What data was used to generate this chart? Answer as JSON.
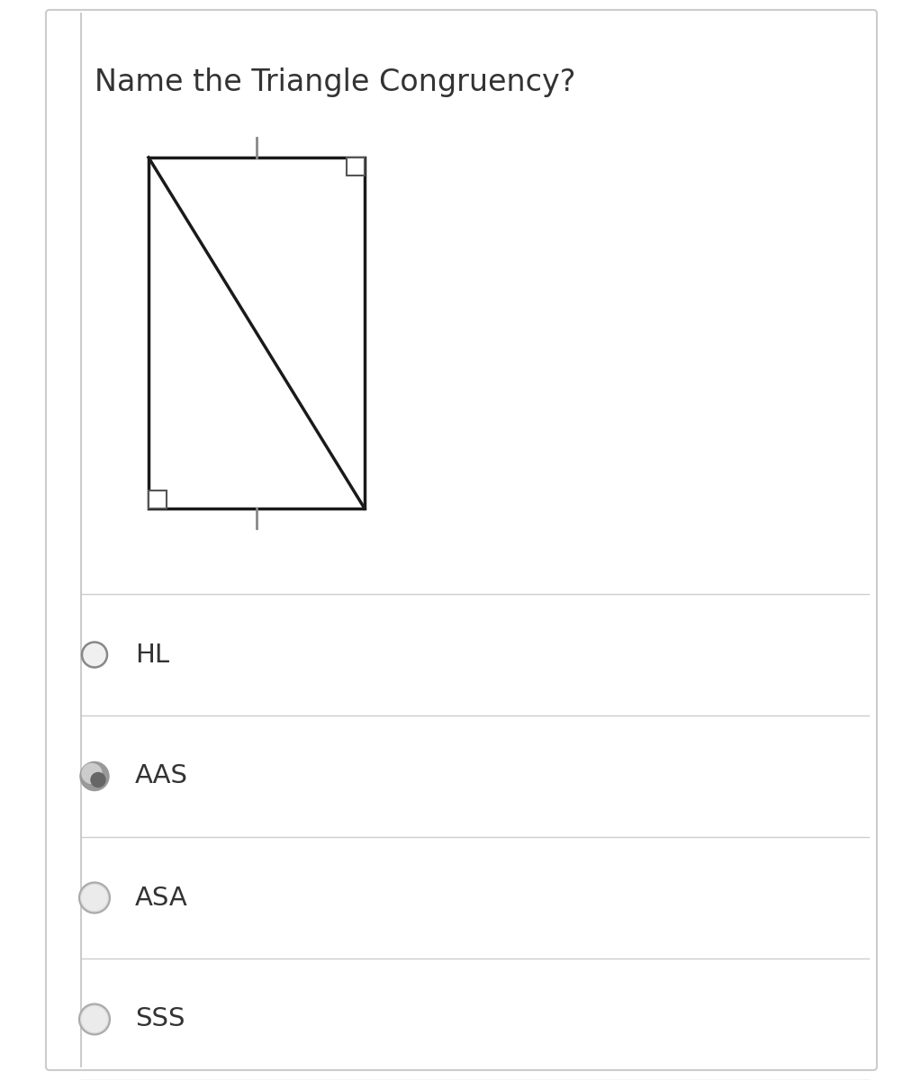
{
  "title": "Name the Triangle Congruency?",
  "title_fontsize": 24,
  "bg_color": "#ffffff",
  "border_color": "#cccccc",
  "options": [
    "HL",
    "AAS",
    "ASA",
    "SSS"
  ],
  "selected_index": 1,
  "option_text_color": "#333333",
  "option_fontsize": 21,
  "line_color": "#cccccc",
  "fig_width": 10.23,
  "fig_height": 12.0,
  "dpi": 100
}
